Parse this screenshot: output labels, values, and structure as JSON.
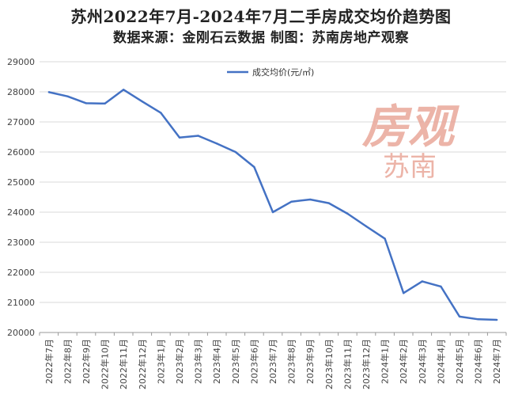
{
  "title": "苏州2022年7月-2024年7月二手房成交均价趋势图",
  "subtitle": "数据来源：金刚石云数据 制图：苏南房地产观察",
  "watermark": {
    "main": "房观",
    "sub": "苏南"
  },
  "colors": {
    "line": "#4472c4",
    "grid": "#d9d9d9",
    "axis": "#999999"
  },
  "chart_data": {
    "type": "line",
    "title": "苏州2022年7月-2024年7月二手房成交均价趋势图",
    "categories": [
      "2022年7月",
      "2022年8月",
      "2022年9月",
      "2022年10月",
      "2022年11月",
      "2022年12月",
      "2023年1月",
      "2023年2月",
      "2023年3月",
      "2023年4月",
      "2023年5月",
      "2023年6月",
      "2023年7月",
      "2023年8月",
      "2023年9月",
      "2023年10月",
      "2023年11月",
      "2023年12月",
      "2024年1月",
      "2024年2月",
      "2024年3月",
      "2024年4月",
      "2024年5月",
      "2024年6月",
      "2024年7月"
    ],
    "series": [
      {
        "name": "成交均价(元/㎡)",
        "values": [
          27990,
          27850,
          27620,
          27610,
          28070,
          27680,
          27300,
          26480,
          26540,
          26280,
          26000,
          25500,
          24000,
          24350,
          24420,
          24300,
          23950,
          23530,
          23120,
          21310,
          21700,
          21530,
          20530,
          20440,
          20420
        ]
      }
    ],
    "ylim": [
      20000,
      29000
    ],
    "yticks": [
      20000,
      21000,
      22000,
      23000,
      24000,
      25000,
      26000,
      27000,
      28000,
      29000
    ],
    "grid": true,
    "legend": "top-center"
  }
}
